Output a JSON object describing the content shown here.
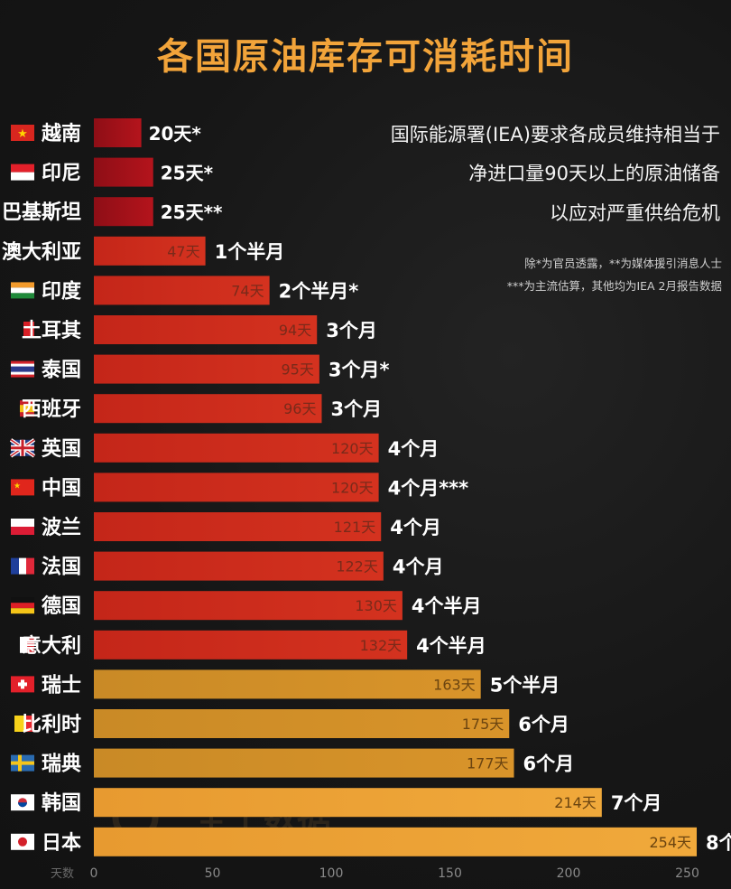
{
  "title": "各国原油库存可消耗时间",
  "notes": {
    "main": [
      "国际能源署(IEA)要求各成员维持相当于",
      "净进口量90天以上的原油储备",
      "以应对严重供给危机"
    ],
    "footnotes": [
      "除*为官员透露，**为媒体援引消息人士",
      "***为主流估算，其他均为IEA 2月报告数据"
    ]
  },
  "watermark": "全十数据",
  "colors": {
    "red_dark": "#b4141c",
    "red": "#d4321f",
    "amber": "#d9942a",
    "orange": "#f0a93b",
    "label_inside": "#7a2a1a",
    "label_inside_light": "#6b4410"
  },
  "chart_data": {
    "type": "bar",
    "orientation": "horizontal",
    "title": "各国原油库存可消耗时间",
    "xlabel": "天数",
    "xlim": [
      0,
      260
    ],
    "xticks": [
      0,
      50,
      100,
      150,
      200,
      250
    ],
    "categories": [
      "越南",
      "印尼",
      "巴基斯坦",
      "澳大利亚",
      "印度",
      "土耳其",
      "泰国",
      "西班牙",
      "英国",
      "中国",
      "波兰",
      "法国",
      "德国",
      "意大利",
      "瑞士",
      "比利时",
      "瑞典",
      "韩国",
      "日本"
    ],
    "values": [
      20,
      25,
      25,
      47,
      74,
      94,
      95,
      96,
      120,
      120,
      121,
      122,
      130,
      132,
      163,
      175,
      177,
      214,
      254
    ],
    "value_labels": [
      "20天*",
      "25天*",
      "25天**",
      "47天",
      "74天",
      "94天",
      "95天",
      "96天",
      "120天",
      "120天",
      "121天",
      "122天",
      "130天",
      "132天",
      "163天",
      "175天",
      "177天",
      "214天",
      "254天"
    ],
    "duration_labels": [
      "",
      "",
      "",
      "1个半月",
      "2个半月*",
      "3个月",
      "3个月*",
      "3个月",
      "4个月",
      "4个月***",
      "4个月",
      "4个月",
      "4个半月",
      "4个半月",
      "5个半月",
      "6个月",
      "6个月",
      "7个月",
      "8个"
    ],
    "flags": [
      "vietnam-flag-icon",
      "indonesia-flag-icon",
      "pakistan-flag-icon",
      "",
      "india-flag-icon",
      "turkey-flag-icon",
      "thailand-flag-icon",
      "spain-flag-icon",
      "uk-flag-icon",
      "china-flag-icon",
      "poland-flag-icon",
      "france-flag-icon",
      "germany-flag-icon",
      "italy-flag-icon",
      "switzerland-flag-icon",
      "belgium-flag-icon",
      "sweden-flag-icon",
      "korea-flag-icon",
      "japan-flag-icon"
    ],
    "bar_styles": [
      "dark",
      "dark",
      "dark",
      "red",
      "red",
      "red",
      "red",
      "red",
      "red",
      "red",
      "red",
      "red",
      "red",
      "red",
      "amber",
      "amber",
      "amber",
      "orange",
      "orange"
    ],
    "grid": false,
    "legend": "none"
  }
}
